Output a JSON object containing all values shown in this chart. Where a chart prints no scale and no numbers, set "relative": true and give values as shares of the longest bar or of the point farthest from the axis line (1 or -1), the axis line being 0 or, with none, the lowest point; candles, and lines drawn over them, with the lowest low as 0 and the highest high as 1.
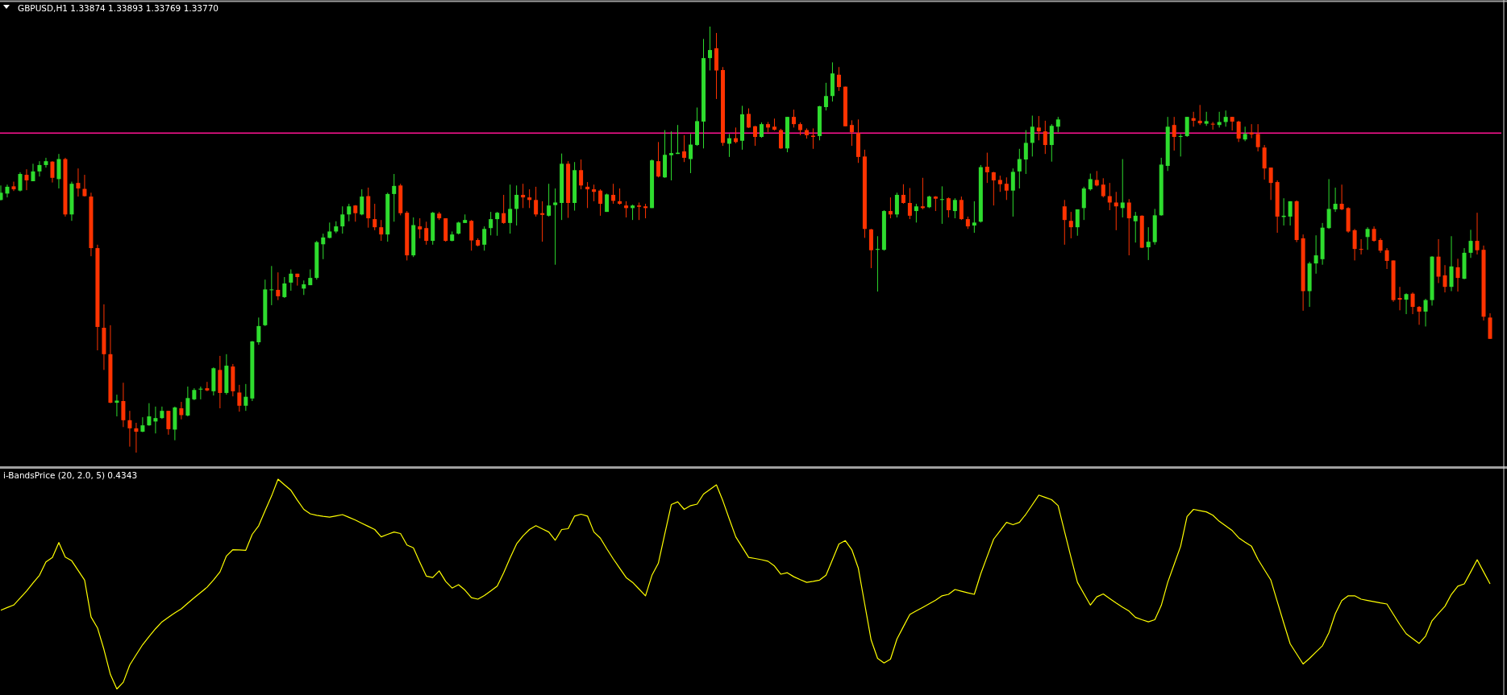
{
  "chart_data": [
    {
      "type": "candlestick",
      "title": "GBPUSD,H1 1.33874 1.33893 1.33769 1.33770",
      "relative": true,
      "categories": [
        null,
        null,
        null,
        null,
        null,
        null,
        null,
        null,
        null,
        null,
        null,
        null,
        null,
        null,
        null,
        null,
        null,
        null,
        null,
        null,
        null,
        null,
        null,
        null,
        null,
        null,
        null,
        null,
        null,
        null,
        null,
        null,
        null,
        null,
        null,
        null,
        null,
        null,
        null,
        null,
        null,
        null,
        null,
        null,
        null,
        null,
        null,
        null,
        null,
        null,
        null,
        null,
        null,
        null,
        null,
        null,
        null,
        null,
        null,
        null,
        null,
        null,
        null,
        null,
        null,
        null,
        null,
        null,
        null,
        null,
        null,
        null,
        null,
        null,
        null,
        null,
        null,
        null,
        null,
        null,
        null,
        null,
        null,
        null,
        null,
        null,
        null,
        null,
        null,
        null,
        null,
        null,
        null,
        null,
        null,
        null,
        null,
        null,
        null,
        null,
        null,
        null,
        null,
        null,
        null,
        null,
        null,
        null,
        null,
        null,
        null,
        null,
        null,
        null,
        null,
        null,
        null,
        null,
        null,
        null,
        null,
        null,
        null,
        null,
        null,
        null,
        null,
        null,
        null,
        null,
        null,
        null,
        null,
        null,
        null,
        null,
        null,
        null,
        null,
        null,
        null,
        null,
        null,
        null,
        null,
        null,
        null,
        null,
        null,
        null,
        null,
        null,
        null,
        null,
        null,
        null,
        null,
        null,
        null,
        null,
        null,
        null,
        null,
        null,
        null,
        null,
        null,
        null,
        null,
        null,
        null,
        null,
        null,
        null,
        null,
        null,
        null,
        null,
        null,
        null,
        null,
        null,
        null,
        null,
        null,
        null,
        null,
        null,
        null,
        null,
        null,
        null,
        null,
        null,
        null,
        null,
        null,
        null,
        null,
        null,
        null,
        null,
        null,
        null,
        null,
        null,
        null,
        null,
        null,
        null,
        null,
        null,
        null,
        null,
        null,
        null,
        null,
        null,
        null,
        null,
        null,
        null,
        null,
        null,
        null,
        null,
        null,
        null,
        null,
        null,
        null,
        null
      ],
      "ohlc": [
        [
          0.593,
          0.627,
          0.592,
          0.61
        ],
        [
          0.608,
          0.629,
          0.599,
          0.624
        ],
        [
          0.625,
          0.636,
          0.614,
          0.618
        ],
        [
          0.615,
          0.658,
          0.613,
          0.654
        ],
        [
          0.652,
          0.665,
          0.616,
          0.639
        ],
        [
          0.637,
          0.678,
          0.637,
          0.66
        ],
        [
          0.66,
          0.684,
          0.648,
          0.675
        ],
        [
          0.675,
          0.692,
          0.669,
          0.684
        ],
        [
          0.683,
          0.684,
          0.634,
          0.645
        ],
        [
          0.642,
          0.701,
          0.62,
          0.689
        ],
        [
          0.689,
          0.692,
          0.554,
          0.559
        ],
        [
          0.559,
          0.636,
          0.544,
          0.631
        ],
        [
          0.633,
          0.667,
          0.601,
          0.62
        ],
        [
          0.619,
          0.652,
          0.601,
          0.602
        ],
        [
          0.601,
          0.61,
          0.461,
          0.48
        ],
        [
          0.48,
          0.488,
          0.24,
          0.295
        ],
        [
          0.293,
          0.348,
          0.194,
          0.231
        ],
        [
          0.231,
          0.299,
          0.116,
          0.117
        ],
        [
          0.117,
          0.136,
          0.085,
          0.122
        ],
        [
          0.121,
          0.164,
          0.06,
          0.076
        ],
        [
          0.076,
          0.098,
          0.014,
          0.057
        ],
        [
          0.057,
          0.07,
          0,
          0.049
        ],
        [
          0.049,
          0.083,
          0.048,
          0.064
        ],
        [
          0.064,
          0.116,
          0.063,
          0.085
        ],
        [
          0.073,
          0.108,
          0.045,
          0.081
        ],
        [
          0.081,
          0.108,
          0.079,
          0.098
        ],
        [
          0.098,
          0.098,
          0.042,
          0.055
        ],
        [
          0.054,
          0.108,
          0.029,
          0.106
        ],
        [
          0.104,
          0.119,
          0.078,
          0.088
        ],
        [
          0.087,
          0.155,
          0.085,
          0.128
        ],
        [
          0.125,
          0.151,
          0.123,
          0.147
        ],
        [
          0.148,
          0.155,
          0.125,
          0.15
        ],
        [
          0.151,
          0.166,
          0.144,
          0.146
        ],
        [
          0.144,
          0.2,
          0.134,
          0.198
        ],
        [
          0.194,
          0.227,
          0.104,
          0.14
        ],
        [
          0.14,
          0.231,
          0.136,
          0.204
        ],
        [
          0.202,
          0.208,
          0.132,
          0.144
        ],
        [
          0.141,
          0.159,
          0.096,
          0.11
        ],
        [
          0.11,
          0.161,
          0.098,
          0.131
        ],
        [
          0.127,
          0.262,
          0.121,
          0.261
        ],
        [
          0.259,
          0.317,
          0.253,
          0.297
        ],
        [
          0.299,
          0.406,
          0.297,
          0.383
        ],
        [
          0.382,
          0.438,
          0.346,
          0.383
        ],
        [
          0.382,
          0.423,
          0.358,
          0.367
        ],
        [
          0.365,
          0.412,
          0.363,
          0.397
        ],
        [
          0.399,
          0.43,
          0.38,
          0.42
        ],
        [
          0.42,
          0.42,
          0.392,
          0.412
        ],
        [
          0.385,
          0.404,
          0.37,
          0.395
        ],
        [
          0.393,
          0.43,
          0.393,
          0.41
        ],
        [
          0.41,
          0.497,
          0.406,
          0.494
        ],
        [
          0.489,
          0.514,
          0.454,
          0.505
        ],
        [
          0.504,
          0.54,
          0.503,
          0.519
        ],
        [
          0.519,
          0.543,
          0.515,
          0.531
        ],
        [
          0.531,
          0.578,
          0.514,
          0.559
        ],
        [
          0.559,
          0.584,
          0.543,
          0.578
        ],
        [
          0.58,
          0.581,
          0.542,
          0.562
        ],
        [
          0.559,
          0.618,
          0.557,
          0.601
        ],
        [
          0.602,
          0.622,
          0.528,
          0.55
        ],
        [
          0.548,
          0.584,
          0.522,
          0.529
        ],
        [
          0.529,
          0.546,
          0.497,
          0.512
        ],
        [
          0.512,
          0.61,
          0.495,
          0.607
        ],
        [
          0.607,
          0.654,
          0.542,
          0.626
        ],
        [
          0.627,
          0.631,
          0.557,
          0.562
        ],
        [
          0.563,
          0.567,
          0.451,
          0.463
        ],
        [
          0.463,
          0.552,
          0.459,
          0.534
        ],
        [
          0.531,
          0.55,
          0.503,
          0.524
        ],
        [
          0.527,
          0.542,
          0.488,
          0.497
        ],
        [
          0.497,
          0.565,
          0.488,
          0.563
        ],
        [
          0.561,
          0.565,
          0.546,
          0.55
        ],
        [
          0.55,
          0.55,
          0.495,
          0.497
        ],
        [
          0.497,
          0.519,
          0.496,
          0.512
        ],
        [
          0.514,
          0.542,
          0.512,
          0.54
        ],
        [
          0.539,
          0.559,
          0.539,
          0.546
        ],
        [
          0.544,
          0.546,
          0.474,
          0.498
        ],
        [
          0.499,
          0.503,
          0.484,
          0.486
        ],
        [
          0.488,
          0.531,
          0.474,
          0.525
        ],
        [
          0.527,
          0.565,
          0.51,
          0.548
        ],
        [
          0.548,
          0.565,
          0.509,
          0.563
        ],
        [
          0.562,
          0.605,
          0.537,
          0.539
        ],
        [
          0.539,
          0.629,
          0.514,
          0.572
        ],
        [
          0.572,
          0.627,
          0.533,
          0.605
        ],
        [
          0.605,
          0.631,
          0.574,
          0.599
        ],
        [
          0.599,
          0.618,
          0.574,
          0.593
        ],
        [
          0.593,
          0.624,
          0.554,
          0.559
        ],
        [
          0.562,
          0.59,
          0.495,
          0.558
        ],
        [
          0.556,
          0.631,
          0.554,
          0.58
        ],
        [
          0.581,
          0.62,
          0.441,
          0.587
        ],
        [
          0.586,
          0.702,
          0.546,
          0.678
        ],
        [
          0.678,
          0.684,
          0.551,
          0.586
        ],
        [
          0.586,
          0.682,
          0.568,
          0.663
        ],
        [
          0.663,
          0.688,
          0.618,
          0.627
        ],
        [
          0.624,
          0.635,
          0.574,
          0.618
        ],
        [
          0.618,
          0.629,
          0.59,
          0.612
        ],
        [
          0.615,
          0.618,
          0.556,
          0.584
        ],
        [
          0.565,
          0.608,
          0.565,
          0.606
        ],
        [
          0.605,
          0.631,
          0.584,
          0.591
        ],
        [
          0.59,
          0.62,
          0.582,
          0.584
        ],
        [
          0.58,
          0.59,
          0.552,
          0.574
        ],
        [
          0.574,
          0.582,
          0.546,
          0.58
        ],
        [
          0.58,
          0.587,
          0.546,
          0.577
        ],
        [
          0.578,
          0.584,
          0.55,
          0.574
        ],
        [
          0.574,
          0.688,
          0.574,
          0.686
        ],
        [
          0.684,
          0.729,
          0.646,
          0.648
        ],
        [
          0.646,
          0.757,
          0.645,
          0.699
        ],
        [
          0.698,
          0.754,
          0.639,
          0.703
        ],
        [
          0.701,
          0.769,
          0.701,
          0.704
        ],
        [
          0.707,
          0.745,
          0.682,
          0.692
        ],
        [
          0.689,
          0.748,
          0.656,
          0.723
        ],
        [
          0.722,
          0.81,
          0.72,
          0.778
        ],
        [
          0.777,
          0.971,
          0.714,
          0.926
        ],
        [
          0.926,
          1,
          0.897,
          0.945
        ],
        [
          0.949,
          0.985,
          0.83,
          0.897
        ],
        [
          0.898,
          0.905,
          0.72,
          0.727
        ],
        [
          0.725,
          0.748,
          0.694,
          0.738
        ],
        [
          0.738,
          0.763,
          0.726,
          0.729
        ],
        [
          0.732,
          0.814,
          0.711,
          0.794
        ],
        [
          0.795,
          0.808,
          0.762,
          0.763
        ],
        [
          0.766,
          0.767,
          0.72,
          0.741
        ],
        [
          0.741,
          0.775,
          0.739,
          0.771
        ],
        [
          0.771,
          0.776,
          0.752,
          0.763
        ],
        [
          0.765,
          0.784,
          0.756,
          0.758
        ],
        [
          0.757,
          0.76,
          0.713,
          0.714
        ],
        [
          0.714,
          0.788,
          0.705,
          0.788
        ],
        [
          0.788,
          0.805,
          0.763,
          0.771
        ],
        [
          0.771,
          0.775,
          0.745,
          0.757
        ],
        [
          0.757,
          0.761,
          0.737,
          0.745
        ],
        [
          0.744,
          0.761,
          0.713,
          0.741
        ],
        [
          0.743,
          0.814,
          0.733,
          0.813
        ],
        [
          0.811,
          0.868,
          0.803,
          0.837
        ],
        [
          0.837,
          0.916,
          0.824,
          0.89
        ],
        [
          0.887,
          0.905,
          0.849,
          0.858
        ],
        [
          0.859,
          0.859,
          0.766,
          0.766
        ],
        [
          0.769,
          0.78,
          0.72,
          0.752
        ],
        [
          0.75,
          0.782,
          0.68,
          0.694
        ],
        [
          0.695,
          0.711,
          0.504,
          0.525
        ],
        [
          0.524,
          0.525,
          0.433,
          0.475
        ],
        [
          0.476,
          0.508,
          0.378,
          0.478
        ],
        [
          0.476,
          0.569,
          0.474,
          0.567
        ],
        [
          0.567,
          0.599,
          0.55,
          0.559
        ],
        [
          0.559,
          0.61,
          0.552,
          0.605
        ],
        [
          0.605,
          0.63,
          0.584,
          0.586
        ],
        [
          0.586,
          0.621,
          0.548,
          0.556
        ],
        [
          0.567,
          0.584,
          0.54,
          0.578
        ],
        [
          0.578,
          0.645,
          0.571,
          0.574
        ],
        [
          0.576,
          0.603,
          0.574,
          0.601
        ],
        [
          0.601,
          0.602,
          0.567,
          0.596
        ],
        [
          0.593,
          0.625,
          0.537,
          0.595
        ],
        [
          0.597,
          0.599,
          0.552,
          0.569
        ],
        [
          0.567,
          0.597,
          0.55,
          0.593
        ],
        [
          0.593,
          0.601,
          0.546,
          0.548
        ],
        [
          0.548,
          0.554,
          0.525,
          0.531
        ],
        [
          0.533,
          0.59,
          0.516,
          0.54
        ],
        [
          0.542,
          0.675,
          0.54,
          0.67
        ],
        [
          0.671,
          0.704,
          0.633,
          0.658
        ],
        [
          0.658,
          0.659,
          0.58,
          0.639
        ],
        [
          0.64,
          0.65,
          0.612,
          0.63
        ],
        [
          0.631,
          0.646,
          0.593,
          0.615
        ],
        [
          0.615,
          0.667,
          0.554,
          0.659
        ],
        [
          0.66,
          0.713,
          0.62,
          0.689
        ],
        [
          0.688,
          0.757,
          0.654,
          0.727
        ],
        [
          0.727,
          0.791,
          0.695,
          0.765
        ],
        [
          0.763,
          0.79,
          0.733,
          0.754
        ],
        [
          0.754,
          0.779,
          0.701,
          0.722
        ],
        [
          0.722,
          0.771,
          0.683,
          0.767
        ],
        [
          0.765,
          0.788,
          0.752,
          0.782
        ],
        [
          0.578,
          0.593,
          0.488,
          0.546
        ],
        [
          0.544,
          0.565,
          0.503,
          0.529
        ],
        [
          0.529,
          0.571,
          0.509,
          0.571
        ],
        [
          0.574,
          0.624,
          0.546,
          0.62
        ],
        [
          0.618,
          0.655,
          0.615,
          0.642
        ],
        [
          0.64,
          0.661,
          0.625,
          0.627
        ],
        [
          0.629,
          0.644,
          0.599,
          0.602
        ],
        [
          0.602,
          0.633,
          0.569,
          0.587
        ],
        [
          0.587,
          0.612,
          0.522,
          0.578
        ],
        [
          0.574,
          0.689,
          0.552,
          0.587
        ],
        [
          0.587,
          0.595,
          0.463,
          0.55
        ],
        [
          0.543,
          0.565,
          0.493,
          0.556
        ],
        [
          0.556,
          0.557,
          0.48,
          0.481
        ],
        [
          0.482,
          0.529,
          0.452,
          0.495
        ],
        [
          0.494,
          0.572,
          0.488,
          0.557
        ],
        [
          0.557,
          0.692,
          0.556,
          0.676
        ],
        [
          0.673,
          0.788,
          0.661,
          0.765
        ],
        [
          0.769,
          0.788,
          0.709,
          0.741
        ],
        [
          0.741,
          0.748,
          0.695,
          0.743
        ],
        [
          0.743,
          0.788,
          0.741,
          0.788
        ],
        [
          0.785,
          0.8,
          0.765,
          0.779
        ],
        [
          0.779,
          0.816,
          0.769,
          0.773
        ],
        [
          0.772,
          0.8,
          0.767,
          0.778
        ],
        [
          0.772,
          0.776,
          0.758,
          0.77
        ],
        [
          0.769,
          0.8,
          0.763,
          0.776
        ],
        [
          0.776,
          0.803,
          0.765,
          0.788
        ],
        [
          0.788,
          0.788,
          0.756,
          0.777
        ],
        [
          0.777,
          0.779,
          0.729,
          0.737
        ],
        [
          0.735,
          0.765,
          0.731,
          0.748
        ],
        [
          0.751,
          0.771,
          0.738,
          0.747
        ],
        [
          0.748,
          0.771,
          0.707,
          0.717
        ],
        [
          0.716,
          0.722,
          0.641,
          0.667
        ],
        [
          0.669,
          0.669,
          0.593,
          0.633
        ],
        [
          0.635,
          0.639,
          0.516,
          0.554
        ],
        [
          0.553,
          0.597,
          0.533,
          0.556
        ],
        [
          0.554,
          0.59,
          0.533,
          0.59
        ],
        [
          0.59,
          0.592,
          0.494,
          0.499
        ],
        [
          0.503,
          0.512,
          0.333,
          0.379
        ],
        [
          0.379,
          0.448,
          0.342,
          0.444
        ],
        [
          0.444,
          0.51,
          0.42,
          0.463
        ],
        [
          0.454,
          0.539,
          0.441,
          0.528
        ],
        [
          0.527,
          0.642,
          0.525,
          0.572
        ],
        [
          0.571,
          0.622,
          0.565,
          0.584
        ],
        [
          0.584,
          0.629,
          0.569,
          0.571
        ],
        [
          0.574,
          0.576,
          0.516,
          0.519
        ],
        [
          0.522,
          0.525,
          0.451,
          0.478
        ],
        [
          0.478,
          0.501,
          0.465,
          0.476
        ],
        [
          0.506,
          0.529,
          0.476,
          0.525
        ],
        [
          0.525,
          0.531,
          0.495,
          0.497
        ],
        [
          0.499,
          0.503,
          0.469,
          0.474
        ],
        [
          0.475,
          0.48,
          0.431,
          0.45
        ],
        [
          0.451,
          0.451,
          0.354,
          0.358
        ],
        [
          0.363,
          0.389,
          0.334,
          0.359
        ],
        [
          0.359,
          0.374,
          0.325,
          0.372
        ],
        [
          0.373,
          0.376,
          0.325,
          0.342
        ],
        [
          0.342,
          0.344,
          0.3,
          0.331
        ],
        [
          0.331,
          0.361,
          0.296,
          0.358
        ],
        [
          0.358,
          0.461,
          0.345,
          0.46
        ],
        [
          0.46,
          0.501,
          0.398,
          0.413
        ],
        [
          0.416,
          0.44,
          0.376,
          0.389
        ],
        [
          0.389,
          0.508,
          0.379,
          0.437
        ],
        [
          0.435,
          0.455,
          0.378,
          0.41
        ],
        [
          0.408,
          0.48,
          0.407,
          0.469
        ],
        [
          0.469,
          0.523,
          0.457,
          0.497
        ],
        [
          0.497,
          0.563,
          0.465,
          0.475
        ],
        [
          0.476,
          0.486,
          0.31,
          0.319
        ],
        [
          0.317,
          0.327,
          0.267,
          0.267
        ]
      ],
      "colors": [
        "#2edc2e",
        "#2edc2e",
        "#ff3300",
        "#2edc2e",
        "#ff3300",
        "#2edc2e",
        "#2edc2e",
        "#2edc2e",
        "#ff3300",
        "#2edc2e",
        "#ff3300",
        "#2edc2e",
        "#ff3300",
        "#ff3300",
        "#ff3300",
        "#ff3300",
        "#ff3300",
        "#ff3300",
        "#2edc2e",
        "#ff3300",
        "#ff3300",
        "#ff3300",
        "#2edc2e",
        "#2edc2e",
        "#2edc2e",
        "#2edc2e",
        "#ff3300",
        "#2edc2e",
        "#ff3300",
        "#2edc2e",
        "#2edc2e",
        "#2edc2e",
        "#ff3300",
        "#2edc2e",
        "#ff3300",
        "#2edc2e",
        "#ff3300",
        "#ff3300",
        "#2edc2e",
        "#2edc2e",
        "#2edc2e",
        "#2edc2e",
        "#2edc2e",
        "#ff3300",
        "#2edc2e",
        "#2edc2e",
        "#ff3300",
        "#2edc2e",
        "#2edc2e",
        "#2edc2e",
        "#2edc2e",
        "#2edc2e",
        "#2edc2e",
        "#2edc2e",
        "#2edc2e",
        "#ff3300",
        "#2edc2e",
        "#ff3300",
        "#ff3300",
        "#ff3300",
        "#2edc2e",
        "#2edc2e",
        "#ff3300",
        "#ff3300",
        "#2edc2e",
        "#ff3300",
        "#ff3300",
        "#2edc2e",
        "#ff3300",
        "#ff3300",
        "#2edc2e",
        "#2edc2e",
        "#2edc2e",
        "#ff3300",
        "#ff3300",
        "#2edc2e",
        "#2edc2e",
        "#2edc2e",
        "#ff3300",
        "#2edc2e",
        "#2edc2e",
        "#ff3300",
        "#ff3300",
        "#ff3300",
        "#ff3300",
        "#2edc2e",
        "#2edc2e",
        "#2edc2e",
        "#ff3300",
        "#2edc2e",
        "#ff3300",
        "#ff3300",
        "#ff3300",
        "#ff3300",
        "#2edc2e",
        "#ff3300",
        "#ff3300",
        "#ff3300",
        "#2edc2e",
        "#ff3300",
        "#ff3300",
        "#2edc2e",
        "#ff3300",
        "#2edc2e",
        "#2edc2e",
        "#2edc2e",
        "#ff3300",
        "#2edc2e",
        "#2edc2e",
        "#2edc2e",
        "#2edc2e",
        "#ff3300",
        "#ff3300",
        "#2edc2e",
        "#ff3300",
        "#2edc2e",
        "#ff3300",
        "#ff3300",
        "#2edc2e",
        "#ff3300",
        "#ff3300",
        "#ff3300",
        "#2edc2e",
        "#ff3300",
        "#ff3300",
        "#ff3300",
        "#ff3300",
        "#2edc2e",
        "#2edc2e",
        "#2edc2e",
        "#ff3300",
        "#ff3300",
        "#ff3300",
        "#ff3300",
        "#ff3300",
        "#ff3300",
        "#2edc2e",
        "#2edc2e",
        "#ff3300",
        "#2edc2e",
        "#ff3300",
        "#ff3300",
        "#2edc2e",
        "#ff3300",
        "#2edc2e",
        "#ff3300",
        "#2edc2e",
        "#ff3300",
        "#2edc2e",
        "#ff3300",
        "#ff3300",
        "#2edc2e",
        "#2edc2e",
        "#ff3300",
        "#ff3300",
        "#ff3300",
        "#ff3300",
        "#2edc2e",
        "#2edc2e",
        "#2edc2e",
        "#2edc2e",
        "#ff3300",
        "#ff3300",
        "#2edc2e",
        "#2edc2e",
        "#ff3300",
        "#ff3300",
        "#2edc2e",
        "#2edc2e",
        "#2edc2e",
        "#ff3300",
        "#ff3300",
        "#ff3300",
        "#ff3300",
        "#2edc2e",
        "#ff3300",
        "#2edc2e",
        "#ff3300",
        "#2edc2e",
        "#2edc2e",
        "#2edc2e",
        "#2edc2e",
        "#ff3300",
        "#2edc2e",
        "#2edc2e",
        "#ff3300",
        "#ff3300",
        "#2edc2e",
        "#ff3300",
        "#2edc2e",
        "#2edc2e",
        "#ff3300",
        "#ff3300",
        "#2edc2e",
        "#ff3300",
        "#ff3300",
        "#ff3300",
        "#ff3300",
        "#ff3300",
        "#2edc2e",
        "#2edc2e",
        "#ff3300",
        "#ff3300",
        "#2edc2e",
        "#2edc2e",
        "#2edc2e",
        "#2edc2e",
        "#2edc2e",
        "#ff3300",
        "#ff3300",
        "#ff3300",
        "#ff3300",
        "#2edc2e",
        "#ff3300",
        "#ff3300",
        "#ff3300",
        "#ff3300",
        "#ff3300",
        "#2edc2e",
        "#ff3300",
        "#ff3300",
        "#2edc2e",
        "#2edc2e",
        "#ff3300",
        "#ff3300",
        "#2edc2e",
        "#ff3300",
        "#2edc2e",
        "#2edc2e",
        "#ff3300",
        "#ff3300",
        "#ff3300"
      ],
      "ref_lines": [
        {
          "axis": "y",
          "value": 0.75,
          "color": "#ff1493"
        }
      ]
    },
    {
      "type": "line",
      "title": "i-BandsPrice (20, 2.0, 5) 0.4343",
      "relative": true,
      "categories": [
        null,
        null,
        null,
        null,
        null,
        null,
        null,
        null,
        null,
        null,
        null,
        null,
        null,
        null,
        null,
        null,
        null,
        null,
        null,
        null,
        null,
        null,
        null,
        null,
        null,
        null,
        null,
        null,
        null,
        null,
        null,
        null,
        null,
        null,
        null,
        null,
        null,
        null,
        null,
        null,
        null,
        null,
        null,
        null,
        null,
        null,
        null,
        null,
        null,
        null,
        null,
        null,
        null,
        null,
        null,
        null,
        null,
        null,
        null,
        null,
        null,
        null,
        null,
        null,
        null,
        null,
        null,
        null,
        null,
        null,
        null,
        null,
        null,
        null,
        null,
        null,
        null,
        null,
        null,
        null,
        null,
        null,
        null,
        null,
        null,
        null,
        null,
        null,
        null,
        null,
        null,
        null,
        null,
        null,
        null,
        null,
        null,
        null,
        null,
        null,
        null,
        null,
        null,
        null,
        null,
        null,
        null,
        null,
        null,
        null,
        null,
        null,
        null,
        null,
        null,
        null,
        null,
        null,
        null,
        null,
        null,
        null,
        null,
        null,
        null,
        null,
        null,
        null,
        null,
        null,
        null,
        null,
        null,
        null,
        null,
        null,
        null,
        null,
        null,
        null,
        null,
        null,
        null,
        null,
        null,
        null,
        null,
        null,
        null,
        null,
        null,
        null,
        null,
        null,
        null,
        null,
        null,
        null,
        null,
        null,
        null,
        null,
        null,
        null,
        null,
        null,
        null,
        null,
        null,
        null,
        null,
        null,
        null,
        null,
        null,
        null,
        null,
        null,
        null,
        null,
        null,
        null,
        null,
        null,
        null,
        null,
        null,
        null,
        null,
        null,
        null,
        null,
        null,
        null,
        null,
        null,
        null,
        null,
        null,
        null,
        null,
        null,
        null,
        null,
        null,
        null,
        null,
        null,
        null,
        null,
        null,
        null,
        null,
        null,
        null,
        null,
        null,
        null,
        null,
        null,
        null,
        null,
        null,
        null,
        null,
        null,
        null,
        null,
        null,
        null,
        null,
        null
      ],
      "series": [
        {
          "color": "#ffff00",
          "values": [
            0.375,
            0.388,
            0.4,
            0.433,
            0.467,
            0.505,
            0.542,
            0.606,
            0.627,
            0.698,
            0.629,
            0.611,
            0.565,
            0.519,
            0.343,
            0.291,
            0.188,
            0.069,
            0,
            0.032,
            0.114,
            0.163,
            0.211,
            0.25,
            0.287,
            0.32,
            0.342,
            0.363,
            0.382,
            0.409,
            0.435,
            0.46,
            0.485,
            0.52,
            0.558,
            0.634,
            0.664,
            0.663,
            0.661,
            0.737,
            0.778,
            0.85,
            0.92,
            1,
            0.973,
            0.947,
            0.9,
            0.856,
            0.835,
            0.828,
            0.823,
            0.819,
            0.825,
            0.831,
            0.818,
            0.805,
            0.79,
            0.775,
            0.76,
            0.725,
            0.737,
            0.748,
            0.741,
            0.686,
            0.673,
            0.604,
            0.538,
            0.531,
            0.563,
            0.513,
            0.481,
            0.497,
            0.471,
            0.435,
            0.428,
            0.445,
            0.467,
            0.49,
            0.554,
            0.625,
            0.691,
            0.73,
            0.76,
            0.778,
            0.763,
            0.748,
            0.709,
            0.76,
            0.764,
            0.824,
            0.833,
            0.824,
            0.748,
            0.719,
            0.668,
            0.62,
            0.575,
            0.531,
            0.508,
            0.476,
            0.444,
            0.542,
            0.6,
            0.74,
            0.879,
            0.892,
            0.856,
            0.874,
            0.881,
            0.929,
            0.951,
            0.973,
            0.897,
            0.81,
            0.725,
            0.676,
            0.627,
            0.622,
            0.616,
            0.609,
            0.586,
            0.547,
            0.554,
            0.535,
            0.521,
            0.508,
            0.513,
            0.519,
            0.542,
            0.616,
            0.691,
            0.707,
            0.664,
            0.577,
            0.405,
            0.233,
            0.146,
            0.124,
            0.142,
            0.238,
            0.297,
            0.355,
            0.372,
            0.389,
            0.406,
            0.423,
            0.444,
            0.451,
            0.474,
            0.466,
            0.458,
            0.451,
            0.549,
            0.632,
            0.714,
            0.754,
            0.794,
            0.783,
            0.794,
            0.833,
            0.878,
            0.924,
            0.913,
            0.902,
            0.874,
            0.75,
            0.627,
            0.508,
            0.454,
            0.4,
            0.439,
            0.453,
            0.431,
            0.41,
            0.39,
            0.371,
            0.341,
            0.33,
            0.32,
            0.33,
            0.398,
            0.508,
            0.594,
            0.68,
            0.822,
            0.856,
            0.85,
            0.844,
            0.828,
            0.799,
            0.777,
            0.755,
            0.721,
            0.7,
            0.68,
            0.618,
            0.568,
            0.519,
            0.416,
            0.314,
            0.215,
            0.167,
            0.119,
            0.146,
            0.176,
            0.206,
            0.268,
            0.359,
            0.421,
            0.444,
            0.444,
            0.428,
            0.422,
            0.416,
            0.41,
            0.405,
            0.356,
            0.307,
            0.263,
            0.24,
            0.217,
            0.252,
            0.325,
            0.36,
            0.394,
            0.451,
            0.49,
            0.501,
            0.558,
            0.616,
            0.558,
            0.501
          ]
        }
      ]
    }
  ]
}
